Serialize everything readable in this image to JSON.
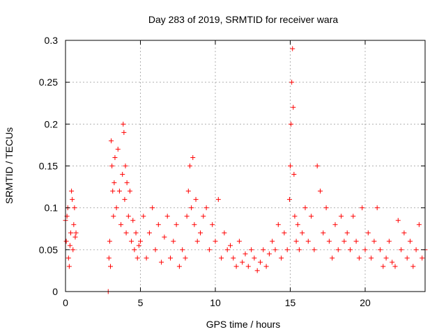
{
  "chart_data": {
    "type": "scatter",
    "title": "Day 283 of 2019, SRMTID for receiver wara",
    "xlabel": "GPS time / hours",
    "ylabel": "SRMTID / TECUs",
    "xlim": [
      0,
      24
    ],
    "ylim": [
      0,
      0.3
    ],
    "xticks": [
      0,
      5,
      10,
      15,
      20
    ],
    "yticks": [
      0,
      0.05,
      0.1,
      0.15,
      0.2,
      0.25,
      0.3
    ],
    "xtick_labels": [
      "0",
      "5",
      "10",
      "15",
      "20"
    ],
    "ytick_labels": [
      "0",
      "0.05",
      "0.1",
      "0.15",
      "0.2",
      "0.25",
      "0.3"
    ],
    "grid": true,
    "marker": "+",
    "series": [
      {
        "name": "SRMTID",
        "color": "#ff0000",
        "x": [
          0.0,
          0.05,
          0.1,
          0.15,
          0.2,
          0.25,
          0.3,
          0.35,
          0.4,
          0.45,
          0.5,
          0.55,
          0.6,
          0.65,
          0.7,
          2.85,
          2.9,
          2.95,
          3.0,
          3.05,
          3.1,
          3.15,
          3.2,
          3.25,
          3.3,
          3.4,
          3.5,
          3.6,
          3.7,
          3.8,
          3.85,
          3.9,
          3.95,
          4.0,
          4.05,
          4.1,
          4.2,
          4.3,
          4.4,
          4.5,
          4.6,
          4.7,
          4.8,
          4.9,
          5.0,
          5.2,
          5.4,
          5.6,
          5.8,
          6.0,
          6.2,
          6.4,
          6.6,
          6.8,
          7.0,
          7.2,
          7.4,
          7.6,
          7.8,
          8.0,
          8.1,
          8.2,
          8.3,
          8.4,
          8.5,
          8.6,
          8.7,
          8.8,
          9.0,
          9.2,
          9.4,
          9.6,
          9.8,
          10.0,
          10.2,
          10.4,
          10.6,
          10.8,
          11.0,
          11.2,
          11.4,
          11.6,
          11.8,
          12.0,
          12.2,
          12.4,
          12.6,
          12.8,
          13.0,
          13.2,
          13.4,
          13.6,
          13.8,
          14.0,
          14.2,
          14.4,
          14.6,
          14.8,
          14.95,
          15.0,
          15.05,
          15.1,
          15.15,
          15.2,
          15.25,
          15.3,
          15.4,
          15.5,
          15.6,
          15.8,
          16.0,
          16.2,
          16.4,
          16.6,
          16.8,
          17.0,
          17.2,
          17.4,
          17.6,
          17.8,
          18.0,
          18.2,
          18.4,
          18.6,
          18.8,
          19.0,
          19.2,
          19.4,
          19.6,
          19.8,
          20.0,
          20.2,
          20.4,
          20.6,
          20.8,
          21.0,
          21.2,
          21.4,
          21.6,
          21.8,
          22.0,
          22.2,
          22.4,
          22.6,
          22.8,
          23.0,
          23.2,
          23.4,
          23.6,
          23.8,
          24.0
        ],
        "y": [
          0.085,
          0.06,
          0.09,
          0.1,
          0.04,
          0.03,
          0.055,
          0.07,
          0.12,
          0.11,
          0.05,
          0.08,
          0.1,
          0.065,
          0.07,
          0.0,
          0.04,
          0.06,
          0.03,
          0.18,
          0.15,
          0.12,
          0.09,
          0.13,
          0.16,
          0.1,
          0.17,
          0.12,
          0.08,
          0.14,
          0.2,
          0.19,
          0.11,
          0.15,
          0.07,
          0.13,
          0.09,
          0.12,
          0.06,
          0.085,
          0.05,
          0.07,
          0.04,
          0.055,
          0.06,
          0.09,
          0.04,
          0.07,
          0.1,
          0.05,
          0.08,
          0.035,
          0.065,
          0.09,
          0.04,
          0.06,
          0.08,
          0.03,
          0.05,
          0.04,
          0.09,
          0.12,
          0.15,
          0.1,
          0.16,
          0.08,
          0.11,
          0.06,
          0.07,
          0.09,
          0.1,
          0.05,
          0.08,
          0.06,
          0.11,
          0.04,
          0.07,
          0.05,
          0.055,
          0.04,
          0.03,
          0.06,
          0.035,
          0.045,
          0.03,
          0.05,
          0.04,
          0.025,
          0.035,
          0.05,
          0.03,
          0.045,
          0.06,
          0.05,
          0.08,
          0.04,
          0.07,
          0.05,
          0.11,
          0.15,
          0.2,
          0.25,
          0.29,
          0.22,
          0.14,
          0.09,
          0.06,
          0.08,
          0.05,
          0.07,
          0.1,
          0.06,
          0.09,
          0.05,
          0.15,
          0.12,
          0.07,
          0.1,
          0.06,
          0.04,
          0.08,
          0.05,
          0.09,
          0.06,
          0.07,
          0.05,
          0.09,
          0.06,
          0.04,
          0.1,
          0.05,
          0.07,
          0.04,
          0.06,
          0.1,
          0.05,
          0.03,
          0.04,
          0.06,
          0.035,
          0.03,
          0.085,
          0.05,
          0.07,
          0.04,
          0.06,
          0.03,
          0.05,
          0.08,
          0.04,
          0.05
        ]
      }
    ]
  }
}
